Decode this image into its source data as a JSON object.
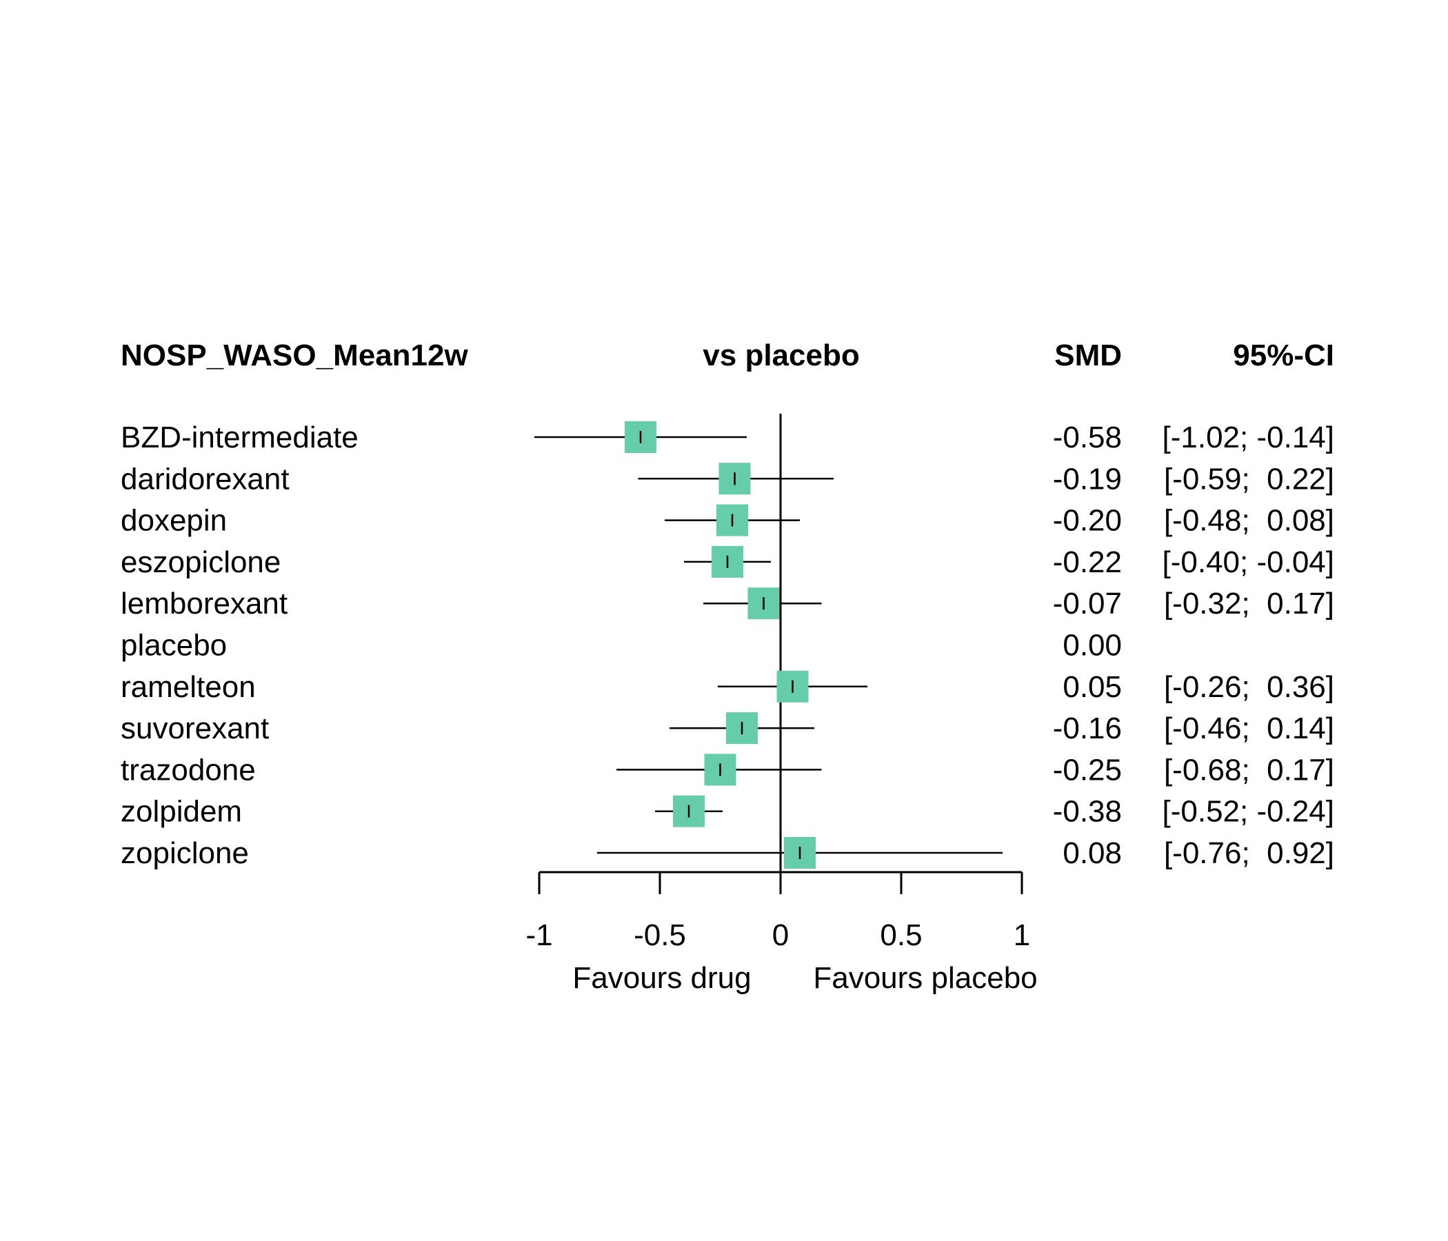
{
  "chart_data": {
    "type": "forest",
    "headers": {
      "outcome": "NOSP_WASO_Mean12w",
      "comparison": "vs placebo",
      "effect": "SMD",
      "ci": "95%-CI"
    },
    "rows": [
      {
        "name": "BZD-intermediate",
        "smd": -0.58,
        "lower": -1.02,
        "upper": -0.14,
        "smd_text": "-0.58",
        "ci_text": "[-1.02; -0.14]"
      },
      {
        "name": "daridorexant",
        "smd": -0.19,
        "lower": -0.59,
        "upper": 0.22,
        "smd_text": "-0.19",
        "ci_text": "[-0.59;  0.22]"
      },
      {
        "name": "doxepin",
        "smd": -0.2,
        "lower": -0.48,
        "upper": 0.08,
        "smd_text": "-0.20",
        "ci_text": "[-0.48;  0.08]"
      },
      {
        "name": "eszopiclone",
        "smd": -0.22,
        "lower": -0.4,
        "upper": -0.04,
        "smd_text": "-0.22",
        "ci_text": "[-0.40; -0.04]"
      },
      {
        "name": "lemborexant",
        "smd": -0.07,
        "lower": -0.32,
        "upper": 0.17,
        "smd_text": "-0.07",
        "ci_text": "[-0.32;  0.17]"
      },
      {
        "name": "placebo",
        "smd": 0.0,
        "lower": null,
        "upper": null,
        "smd_text": "0.00",
        "ci_text": ""
      },
      {
        "name": "ramelteon",
        "smd": 0.05,
        "lower": -0.26,
        "upper": 0.36,
        "smd_text": "0.05",
        "ci_text": "[-0.26;  0.36]"
      },
      {
        "name": "suvorexant",
        "smd": -0.16,
        "lower": -0.46,
        "upper": 0.14,
        "smd_text": "-0.16",
        "ci_text": "[-0.46;  0.14]"
      },
      {
        "name": "trazodone",
        "smd": -0.25,
        "lower": -0.68,
        "upper": 0.17,
        "smd_text": "-0.25",
        "ci_text": "[-0.68;  0.17]"
      },
      {
        "name": "zolpidem",
        "smd": -0.38,
        "lower": -0.52,
        "upper": -0.24,
        "smd_text": "-0.38",
        "ci_text": "[-0.52; -0.24]"
      },
      {
        "name": "zopiclone",
        "smd": 0.08,
        "lower": -0.76,
        "upper": 0.92,
        "smd_text": "0.08",
        "ci_text": "[-0.76;  0.92]"
      }
    ],
    "xlim": [
      -1,
      1
    ],
    "xticks": [
      -1,
      -0.5,
      0,
      0.5,
      1
    ],
    "xtick_labels": [
      "-1",
      "-0.5",
      "0",
      "0.5",
      "1"
    ],
    "xlabel_left": "Favours drug",
    "xlabel_right": "Favours placebo",
    "reference_line": 0,
    "colors": {
      "marker": "#66CDAA",
      "line": "#000000"
    }
  }
}
